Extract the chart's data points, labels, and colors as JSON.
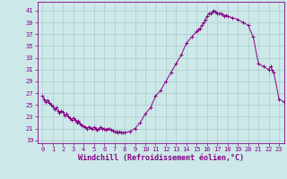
{
  "title": "",
  "xlabel": "Windchill (Refroidissement éolien,°C)",
  "ylabel": "",
  "background_color": "#cce8e8",
  "line_color": "#880088",
  "marker_color": "#880088",
  "grid_color": "#aacccc",
  "xlim": [
    -0.5,
    23.5
  ],
  "ylim": [
    18.5,
    42.5
  ],
  "yticks": [
    19,
    21,
    23,
    25,
    27,
    29,
    31,
    33,
    35,
    37,
    39,
    41
  ],
  "xticks": [
    0,
    1,
    2,
    3,
    4,
    5,
    6,
    7,
    8,
    9,
    10,
    11,
    12,
    13,
    14,
    15,
    16,
    17,
    18,
    19,
    20,
    21,
    22,
    23
  ],
  "hours": [
    0.0,
    0.17,
    0.33,
    0.5,
    0.67,
    0.83,
    1.0,
    1.17,
    1.33,
    1.5,
    1.67,
    1.83,
    2.0,
    2.17,
    2.33,
    2.5,
    2.67,
    2.83,
    3.0,
    3.17,
    3.33,
    3.5,
    3.67,
    3.83,
    4.0,
    4.17,
    4.33,
    4.5,
    4.67,
    4.83,
    5.0,
    5.17,
    5.33,
    5.5,
    5.67,
    5.83,
    6.0,
    6.17,
    6.33,
    6.5,
    6.67,
    6.83,
    7.0,
    7.17,
    7.33,
    7.5,
    7.67,
    7.83,
    8.0,
    8.5,
    9.0,
    9.5,
    10.0,
    10.5,
    11.0,
    11.5,
    12.0,
    12.5,
    13.0,
    13.5,
    14.0,
    14.5,
    15.0,
    15.17,
    15.33,
    15.5,
    15.67,
    15.83,
    16.0,
    16.17,
    16.33,
    16.5,
    16.67,
    16.83,
    17.0,
    17.17,
    17.33,
    17.5,
    17.67,
    17.83,
    18.0,
    18.5,
    19.0,
    19.5,
    20.0,
    20.5,
    21.0,
    21.5,
    22.0,
    22.17,
    22.33,
    22.5,
    23.0,
    23.5
  ],
  "values": [
    26.5,
    26.0,
    25.5,
    25.8,
    25.3,
    25.0,
    24.8,
    24.2,
    24.5,
    23.9,
    23.6,
    24.0,
    23.8,
    23.2,
    23.5,
    23.0,
    22.8,
    22.5,
    22.8,
    22.4,
    22.0,
    22.3,
    21.8,
    21.5,
    21.4,
    21.2,
    21.0,
    21.3,
    21.1,
    21.0,
    21.2,
    21.0,
    20.8,
    21.0,
    21.2,
    21.0,
    21.0,
    20.8,
    21.0,
    20.9,
    20.8,
    20.7,
    20.5,
    20.4,
    20.3,
    20.4,
    20.3,
    20.3,
    20.3,
    20.5,
    21.0,
    22.0,
    23.5,
    24.5,
    26.5,
    27.5,
    29.0,
    30.5,
    32.0,
    33.5,
    35.5,
    36.5,
    37.5,
    37.8,
    38.0,
    38.5,
    39.0,
    39.5,
    40.0,
    40.5,
    40.5,
    40.8,
    41.0,
    40.8,
    40.5,
    40.5,
    40.5,
    40.3,
    40.0,
    40.2,
    40.0,
    39.8,
    39.5,
    39.0,
    38.5,
    36.5,
    32.0,
    31.5,
    31.0,
    31.5,
    31.0,
    30.5,
    26.0,
    25.5
  ]
}
